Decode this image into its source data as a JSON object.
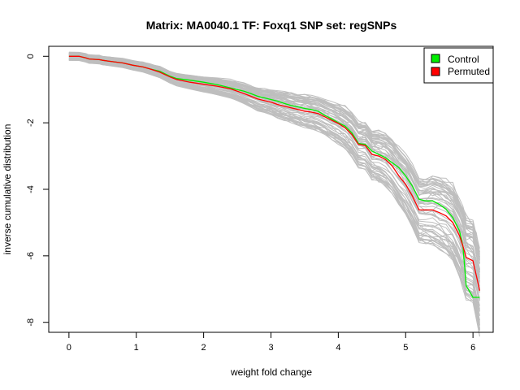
{
  "chart_data": {
    "type": "line",
    "title": "Matrix: MA0040.1 TF: Foxq1 SNP set: regSNPs",
    "xlabel": "weight fold change",
    "ylabel": "inverse cumulative distribution",
    "xlim": [
      -0.3,
      6.3
    ],
    "ylim": [
      -8.3,
      0.3
    ],
    "xticks": [
      0,
      1,
      2,
      3,
      4,
      5,
      6
    ],
    "yticks": [
      0,
      -2,
      -4,
      -6,
      -8
    ],
    "grid": false,
    "legend_position": "top-right",
    "series": [
      {
        "name": "Control",
        "color": "#00ee00",
        "x": [
          0,
          0.15,
          0.25,
          0.3,
          0.45,
          0.5,
          0.6,
          0.8,
          0.95,
          1.1,
          1.2,
          1.35,
          1.5,
          1.6,
          1.8,
          2.0,
          2.2,
          2.4,
          2.5,
          2.6,
          2.7,
          2.8,
          2.9,
          3.0,
          3.1,
          3.2,
          3.3,
          3.4,
          3.5,
          3.6,
          3.7,
          3.8,
          3.9,
          4.0,
          4.1,
          4.2,
          4.3,
          4.4,
          4.5,
          4.6,
          4.7,
          4.8,
          4.9,
          5.0,
          5.1,
          5.2,
          5.3,
          5.4,
          5.5,
          5.6,
          5.7,
          5.8,
          5.85,
          5.9,
          6.0,
          6.05,
          6.1
        ],
        "y": [
          0,
          0,
          -0.05,
          -0.08,
          -0.1,
          -0.12,
          -0.15,
          -0.2,
          -0.27,
          -0.32,
          -0.38,
          -0.45,
          -0.6,
          -0.67,
          -0.72,
          -0.78,
          -0.85,
          -0.95,
          -1.0,
          -1.05,
          -1.12,
          -1.2,
          -1.25,
          -1.3,
          -1.35,
          -1.42,
          -1.48,
          -1.52,
          -1.57,
          -1.6,
          -1.65,
          -1.78,
          -1.88,
          -2.0,
          -2.1,
          -2.3,
          -2.62,
          -2.65,
          -2.85,
          -2.95,
          -3.05,
          -3.2,
          -3.35,
          -3.6,
          -3.9,
          -4.3,
          -4.35,
          -4.35,
          -4.45,
          -4.6,
          -4.85,
          -5.25,
          -5.7,
          -6.9,
          -7.25,
          -7.25,
          -7.25
        ]
      },
      {
        "name": "Permuted",
        "color": "#ff0000",
        "x": [
          0,
          0.15,
          0.25,
          0.3,
          0.45,
          0.5,
          0.6,
          0.8,
          0.95,
          1.1,
          1.2,
          1.35,
          1.5,
          1.6,
          1.8,
          2.0,
          2.2,
          2.4,
          2.5,
          2.6,
          2.7,
          2.8,
          2.9,
          3.0,
          3.1,
          3.2,
          3.3,
          3.4,
          3.5,
          3.6,
          3.7,
          3.8,
          3.9,
          4.0,
          4.1,
          4.2,
          4.3,
          4.4,
          4.5,
          4.6,
          4.7,
          4.8,
          4.9,
          5.0,
          5.1,
          5.2,
          5.3,
          5.4,
          5.5,
          5.6,
          5.7,
          5.8,
          5.85,
          5.9,
          6.0,
          6.05,
          6.1
        ],
        "y": [
          0,
          0,
          -0.05,
          -0.08,
          -0.1,
          -0.12,
          -0.15,
          -0.2,
          -0.27,
          -0.32,
          -0.38,
          -0.48,
          -0.62,
          -0.7,
          -0.78,
          -0.84,
          -0.9,
          -0.98,
          -1.05,
          -1.12,
          -1.2,
          -1.28,
          -1.33,
          -1.38,
          -1.45,
          -1.5,
          -1.55,
          -1.6,
          -1.65,
          -1.68,
          -1.72,
          -1.82,
          -1.92,
          -2.02,
          -2.15,
          -2.35,
          -2.65,
          -2.68,
          -2.95,
          -3.0,
          -3.1,
          -3.3,
          -3.6,
          -3.85,
          -4.2,
          -4.62,
          -4.62,
          -4.62,
          -4.7,
          -4.8,
          -5.0,
          -5.4,
          -5.7,
          -6.05,
          -6.15,
          -6.6,
          -7.05
        ]
      }
    ],
    "background_series_color": "#bebebe"
  }
}
